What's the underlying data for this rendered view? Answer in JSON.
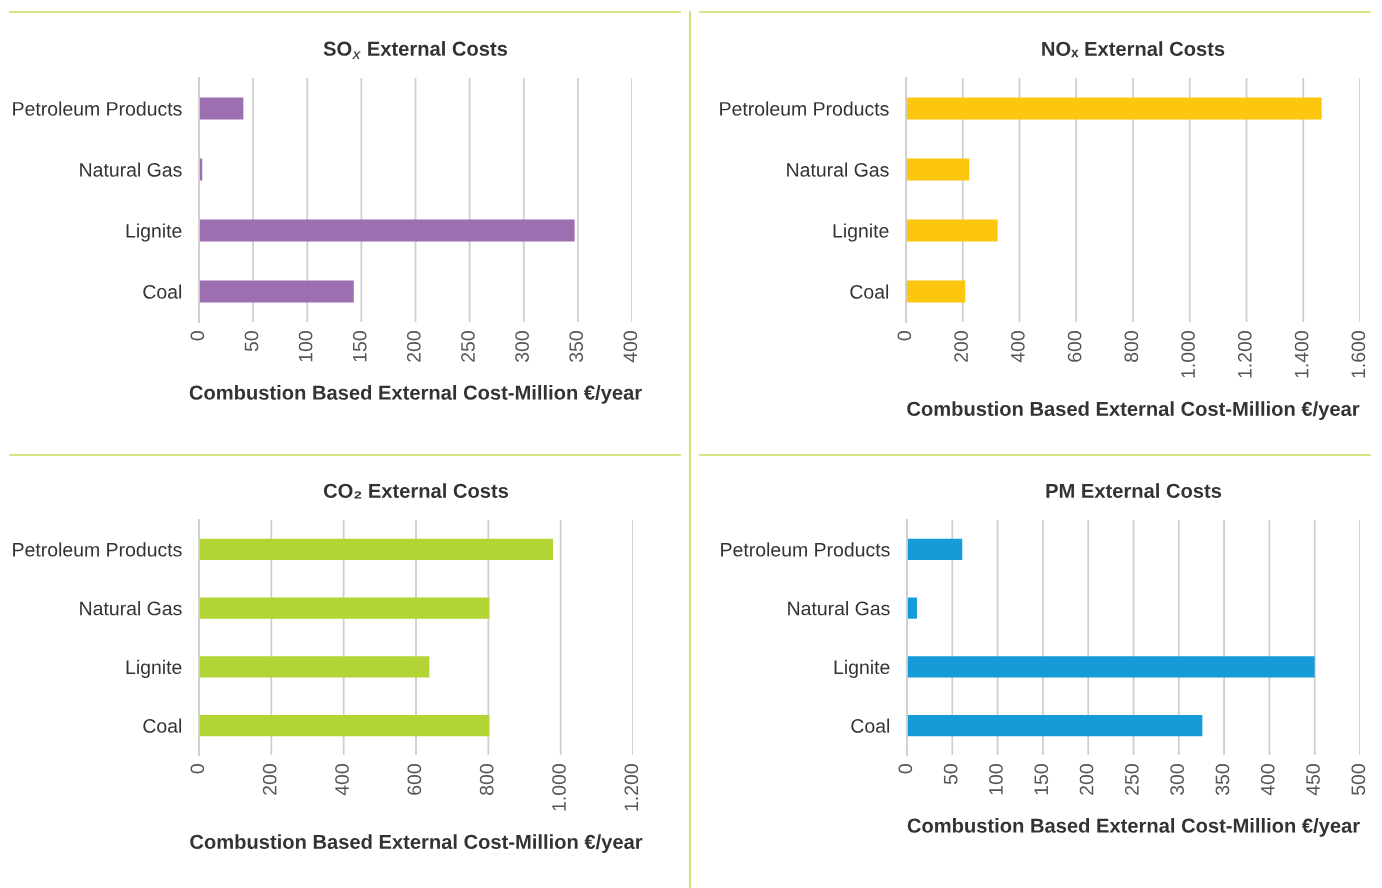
{
  "chart_data": [
    {
      "type": "bar",
      "orientation": "horizontal",
      "title": "SO$_{x}$ External Costs",
      "xlabel": "Combustion Based External Cost-Million €/year",
      "categories": [
        "Petroleum Products",
        "Natural Gas",
        "Lignite",
        "Coal"
      ],
      "values": [
        41,
        3,
        347,
        143
      ],
      "color": "#9b6fb0",
      "xlim": [
        0,
        400
      ],
      "xticks": [
        0,
        50,
        100,
        150,
        200,
        250,
        300,
        350,
        400
      ],
      "grid": "x"
    },
    {
      "type": "bar",
      "orientation": "horizontal",
      "title": "NOₓ External Costs",
      "xlabel": "Combustion Based External Cost-Million €/year",
      "categories": [
        "Petroleum Products",
        "Natural Gas",
        "Lignite",
        "Coal"
      ],
      "values": [
        1465,
        223,
        323,
        209
      ],
      "color": "#fdc60f",
      "xlim": [
        0,
        1600
      ],
      "xticks": [
        0,
        200,
        400,
        600,
        800,
        {
          "value": 1000,
          "label": "1.000"
        },
        {
          "value": 1200,
          "label": "1.200"
        },
        {
          "value": 1400,
          "label": "1.400"
        },
        {
          "value": 1600,
          "label": "1.600"
        }
      ],
      "grid": "x"
    },
    {
      "type": "bar",
      "orientation": "horizontal",
      "title": "CO₂ External Costs",
      "xlabel": "Combustion Based External Cost-Million €/year",
      "categories": [
        "Petroleum Products",
        "Natural Gas",
        "Lignite",
        "Coal"
      ],
      "values": [
        979,
        803,
        637,
        803
      ],
      "color": "#b2d435",
      "xlim": [
        0,
        1200
      ],
      "xticks": [
        0,
        200,
        400,
        600,
        800,
        {
          "value": 1000,
          "label": "1.000"
        },
        {
          "value": 1200,
          "label": "1.200"
        }
      ],
      "grid": "x"
    },
    {
      "type": "bar",
      "orientation": "horizontal",
      "title": "PM External Costs",
      "xlabel": "Combustion Based External Cost-Million €/year",
      "categories": [
        "Petroleum Products",
        "Natural Gas",
        "Lignite",
        "Coal"
      ],
      "values": [
        61,
        11,
        450,
        326
      ],
      "color": "#159bd7",
      "xlim": [
        0,
        500
      ],
      "xticks": [
        0,
        50,
        100,
        150,
        200,
        250,
        300,
        350,
        400,
        450,
        500
      ],
      "grid": "x"
    }
  ]
}
